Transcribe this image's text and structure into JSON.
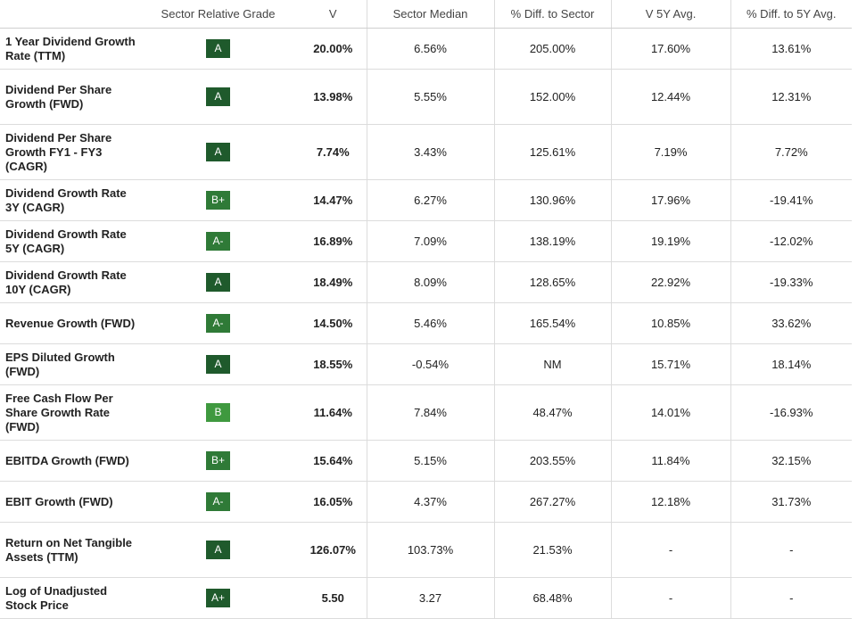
{
  "headers": [
    "",
    "Sector Relative Grade",
    "V",
    "Sector Median",
    "% Diff. to Sector",
    "V 5Y Avg.",
    "% Diff. to 5Y Avg."
  ],
  "grade_colors": {
    "A": "#1f5a2c",
    "A+": "#1f5a2c",
    "A-": "#2f7a37",
    "B+": "#2f7a37",
    "B": "#3f993f"
  },
  "rows": [
    {
      "metric": "1 Year Dividend Growth Rate (TTM)",
      "grade": "A",
      "value": "20.00%",
      "sector_median": "6.56%",
      "diff_sector": "205.00%",
      "avg_5y": "17.60%",
      "diff_5y": "13.61%"
    },
    {
      "metric": "Dividend Per Share Growth (FWD)",
      "grade": "A",
      "value": "13.98%",
      "sector_median": "5.55%",
      "diff_sector": "152.00%",
      "avg_5y": "12.44%",
      "diff_5y": "12.31%"
    },
    {
      "metric": "Dividend Per Share Growth FY1 - FY3 (CAGR)",
      "grade": "A",
      "value": "7.74%",
      "sector_median": "3.43%",
      "diff_sector": "125.61%",
      "avg_5y": "7.19%",
      "diff_5y": "7.72%"
    },
    {
      "metric": "Dividend Growth Rate 3Y (CAGR)",
      "grade": "B+",
      "value": "14.47%",
      "sector_median": "6.27%",
      "diff_sector": "130.96%",
      "avg_5y": "17.96%",
      "diff_5y": "-19.41%"
    },
    {
      "metric": "Dividend Growth Rate 5Y (CAGR)",
      "grade": "A-",
      "value": "16.89%",
      "sector_median": "7.09%",
      "diff_sector": "138.19%",
      "avg_5y": "19.19%",
      "diff_5y": "-12.02%"
    },
    {
      "metric": "Dividend Growth Rate 10Y (CAGR)",
      "grade": "A",
      "value": "18.49%",
      "sector_median": "8.09%",
      "diff_sector": "128.65%",
      "avg_5y": "22.92%",
      "diff_5y": "-19.33%"
    },
    {
      "metric": "Revenue Growth (FWD)",
      "grade": "A-",
      "value": "14.50%",
      "sector_median": "5.46%",
      "diff_sector": "165.54%",
      "avg_5y": "10.85%",
      "diff_5y": "33.62%"
    },
    {
      "metric": "EPS Diluted Growth (FWD)",
      "grade": "A",
      "value": "18.55%",
      "sector_median": "-0.54%",
      "diff_sector": "NM",
      "avg_5y": "15.71%",
      "diff_5y": "18.14%"
    },
    {
      "metric": "Free Cash Flow Per Share Growth Rate (FWD)",
      "grade": "B",
      "value": "11.64%",
      "sector_median": "7.84%",
      "diff_sector": "48.47%",
      "avg_5y": "14.01%",
      "diff_5y": "-16.93%"
    },
    {
      "metric": "EBITDA Growth (FWD)",
      "grade": "B+",
      "value": "15.64%",
      "sector_median": "5.15%",
      "diff_sector": "203.55%",
      "avg_5y": "11.84%",
      "diff_5y": "32.15%"
    },
    {
      "metric": "EBIT Growth (FWD)",
      "grade": "A-",
      "value": "16.05%",
      "sector_median": "4.37%",
      "diff_sector": "267.27%",
      "avg_5y": "12.18%",
      "diff_5y": "31.73%"
    },
    {
      "metric": "Return on Net Tangible Assets (TTM)",
      "grade": "A",
      "value": "126.07%",
      "sector_median": "103.73%",
      "diff_sector": "21.53%",
      "avg_5y": "-",
      "diff_5y": "-"
    },
    {
      "metric": "Log of Unadjusted Stock Price",
      "grade": "A+",
      "value": "5.50",
      "sector_median": "3.27",
      "diff_sector": "68.48%",
      "avg_5y": "-",
      "diff_5y": "-"
    }
  ]
}
